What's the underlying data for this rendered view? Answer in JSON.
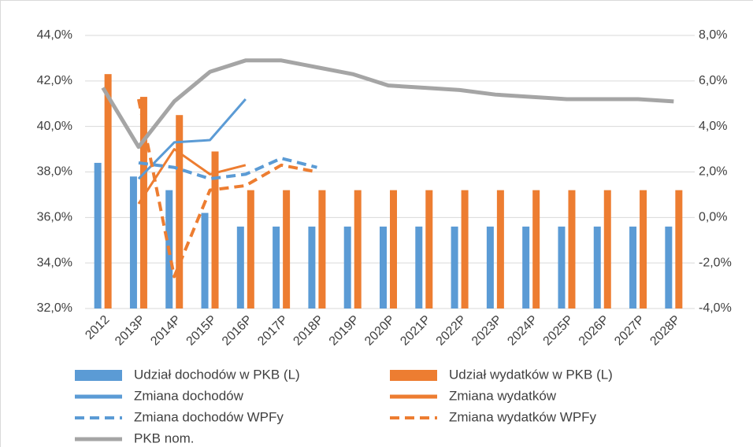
{
  "chart_data": {
    "type": "bar-line",
    "categories": [
      "2012",
      "2013P",
      "2014P",
      "2015P",
      "2016P",
      "2017P",
      "2018P",
      "2019P",
      "2020P",
      "2021P",
      "2022P",
      "2023P",
      "2024P",
      "2025P",
      "2026P",
      "2027P",
      "2028P"
    ],
    "ylim": [
      32,
      44
    ],
    "yticks": [
      {
        "value": 32,
        "label": "32,0%"
      },
      {
        "value": 34,
        "label": "34,0%"
      },
      {
        "value": 36,
        "label": "36,0%"
      },
      {
        "value": 38,
        "label": "38,0%"
      },
      {
        "value": 40,
        "label": "40,0%"
      },
      {
        "value": 42,
        "label": "42,0%"
      },
      {
        "value": 44,
        "label": "44,0%"
      }
    ],
    "y2lim": [
      -4,
      8
    ],
    "y2ticks": [
      {
        "value": -4,
        "label": "-4,0%"
      },
      {
        "value": -2,
        "label": "-2,0%"
      },
      {
        "value": 0,
        "label": "0,0%"
      },
      {
        "value": 2,
        "label": "2,0%"
      },
      {
        "value": 4,
        "label": "4,0%"
      },
      {
        "value": 6,
        "label": "6,0%"
      },
      {
        "value": 8,
        "label": "8,0%"
      }
    ],
    "series": [
      {
        "name": "Udział dochodów w PKB (L)",
        "kind": "bar",
        "color": "#5b9bd5",
        "values": [
          38.4,
          37.8,
          37.2,
          36.2,
          35.6,
          35.6,
          35.6,
          35.6,
          35.6,
          35.6,
          35.6,
          35.6,
          35.6,
          35.6,
          35.6,
          35.6,
          35.6
        ]
      },
      {
        "name": "Udział wydatków w PKB (L)",
        "kind": "bar",
        "color": "#ed7d31",
        "values": [
          42.3,
          41.3,
          40.5,
          38.9,
          37.2,
          37.2,
          37.2,
          37.2,
          37.2,
          37.2,
          37.2,
          37.2,
          37.2,
          37.2,
          37.2,
          37.2,
          37.2
        ]
      },
      {
        "name": "Zmiana dochodów",
        "kind": "line",
        "axis": "y2",
        "dash": "solid",
        "color": "#5b9bd5",
        "values": [
          null,
          1.7,
          3.3,
          3.4,
          5.2,
          null,
          null,
          null,
          null,
          null,
          null,
          null,
          null,
          null,
          null,
          null,
          null
        ]
      },
      {
        "name": "Zmiana wydatków",
        "kind": "line",
        "axis": "y2",
        "dash": "solid",
        "color": "#ed7d31",
        "values": [
          null,
          0.6,
          3.0,
          1.9,
          2.3,
          null,
          null,
          null,
          null,
          null,
          null,
          null,
          null,
          null,
          null,
          null,
          null
        ]
      },
      {
        "name": "Zmiana dochodów WPFy",
        "kind": "line",
        "axis": "y2",
        "dash": "dashed",
        "color": "#5b9bd5",
        "values": [
          null,
          2.4,
          2.2,
          1.7,
          1.9,
          2.6,
          2.2,
          null,
          null,
          null,
          null,
          null,
          null,
          null,
          null,
          null,
          null
        ]
      },
      {
        "name": "Zmiana wydatków WPFy",
        "kind": "line",
        "axis": "y2",
        "dash": "dashed",
        "color": "#ed7d31",
        "values": [
          null,
          5.2,
          -2.6,
          1.2,
          1.4,
          2.3,
          2.0,
          null,
          null,
          null,
          null,
          null,
          null,
          null,
          null,
          null,
          null
        ]
      },
      {
        "name": "PKB nom.",
        "kind": "line",
        "axis": "y2",
        "dash": "solid",
        "color": "#a5a5a5",
        "values": [
          5.7,
          3.1,
          5.1,
          6.4,
          6.9,
          6.9,
          6.6,
          6.3,
          5.8,
          5.7,
          5.6,
          5.4,
          5.3,
          5.2,
          5.2,
          5.2,
          5.1
        ]
      }
    ]
  }
}
